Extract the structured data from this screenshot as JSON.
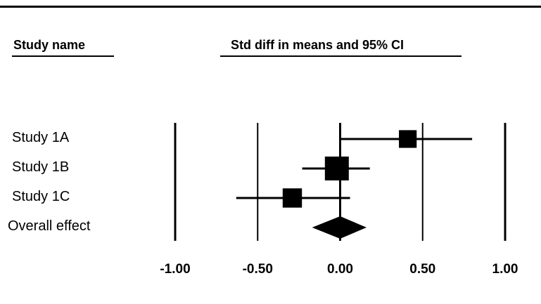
{
  "header": {
    "study_col": "Study name",
    "effect_col": "Std diff in means and 95% CI"
  },
  "chart_data": {
    "type": "forest",
    "xlim": [
      -1.0,
      1.0
    ],
    "ticks": [
      -1.0,
      -0.5,
      0.0,
      0.5,
      1.0
    ],
    "tick_labels": [
      "-1.00",
      "-0.50",
      "0.00",
      "0.50",
      "1.00"
    ],
    "studies": [
      {
        "label": "Study 1A",
        "estimate": 0.41,
        "lower": 0.0,
        "upper": 0.8,
        "weight": 0.6
      },
      {
        "label": "Study 1B",
        "estimate": -0.02,
        "lower": -0.23,
        "upper": 0.18,
        "weight": 1.0
      },
      {
        "label": "Study 1C",
        "estimate": -0.29,
        "lower": -0.63,
        "upper": 0.06,
        "weight": 0.7
      }
    ],
    "overall": {
      "label": "Overall effect",
      "estimate": 0.0,
      "lower": -0.17,
      "upper": 0.16
    },
    "colors": {
      "ink": "#000000",
      "background": "#ffffff"
    }
  }
}
